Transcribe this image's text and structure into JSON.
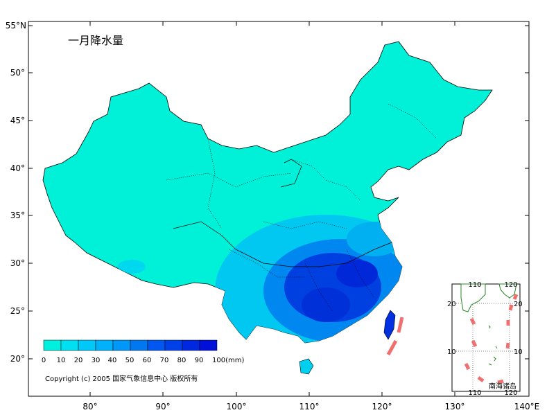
{
  "title": "一月降水量",
  "copyright": "Copyright (c) 2005 国家气象信息中心 版权所有",
  "axes": {
    "lat_labels": [
      "55°N",
      "50°",
      "45°",
      "40°",
      "35°",
      "30°",
      "25°",
      "20°"
    ],
    "lon_labels": [
      "80°",
      "90°",
      "100°",
      "110°",
      "120°",
      "130°",
      "140°E"
    ]
  },
  "legend": {
    "unit": "(mm)",
    "labels": [
      "0",
      "10",
      "20",
      "30",
      "40",
      "50",
      "60",
      "70",
      "80",
      "90",
      "100(mm)"
    ],
    "colors": [
      "#00f0e0",
      "#00e0f0",
      "#00c8f8",
      "#00b0f8",
      "#0098f8",
      "#0078f0",
      "#0058f0",
      "#0040e8",
      "#0028e0",
      "#0010d8"
    ]
  },
  "inset": {
    "label": "南海诸岛",
    "top_ticks": [
      "110",
      "120"
    ],
    "bottom_ticks": [
      "110",
      "120"
    ],
    "left_ticks": [
      "20",
      "10"
    ],
    "right_ticks": [
      "20",
      "10"
    ]
  },
  "colors": {
    "land_low": "#00f0d8",
    "land_mid": "#00c0f0",
    "land_high": "#0040e0",
    "frame": "#000000",
    "nine_dash": "#f07070"
  }
}
